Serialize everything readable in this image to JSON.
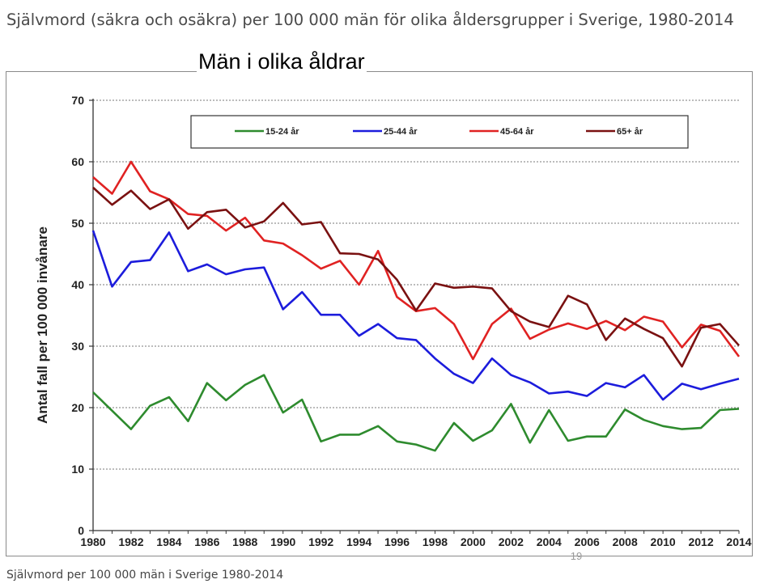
{
  "heading": "Självmord (säkra och osäkra) per 100 000 män för olika åldersgrupper i Sverige, 1980-2014",
  "slide_title": "Män i olika åldrar",
  "page_number": "19",
  "caption": "Självmord per 100 000 män i Sverige 1980-2014",
  "chart_data": {
    "type": "line",
    "ylabel": "Antal fall per 100 000 invånare",
    "xlabel": "",
    "ylim": [
      0,
      70
    ],
    "yticks": [
      0,
      10,
      20,
      30,
      40,
      50,
      60,
      70
    ],
    "xlim": [
      1980,
      2014
    ],
    "xticks": [
      1980,
      1982,
      1984,
      1986,
      1988,
      1990,
      1992,
      1994,
      1996,
      1998,
      2000,
      2002,
      2004,
      2006,
      2008,
      2010,
      2012,
      2014
    ],
    "grid": "horizontal dotted",
    "legend": "top",
    "x": [
      1980,
      1981,
      1982,
      1983,
      1984,
      1985,
      1986,
      1987,
      1988,
      1989,
      1990,
      1991,
      1992,
      1993,
      1994,
      1995,
      1996,
      1997,
      1998,
      1999,
      2000,
      2001,
      2002,
      2003,
      2004,
      2005,
      2006,
      2007,
      2008,
      2009,
      2010,
      2011,
      2012,
      2013,
      2014
    ],
    "series": [
      {
        "name": "15-24 år",
        "color": "#2e8b2e",
        "values": [
          22.5,
          19.5,
          16.5,
          20.3,
          21.7,
          17.8,
          24.0,
          21.2,
          23.7,
          25.3,
          19.2,
          21.3,
          14.5,
          15.6,
          15.6,
          17.0,
          14.5,
          14.0,
          13.0,
          17.5,
          14.6,
          16.3,
          20.6,
          14.3,
          19.6,
          14.6,
          15.3,
          15.3,
          19.7,
          18.0,
          17.0,
          16.5,
          16.7,
          19.6,
          19.8
        ]
      },
      {
        "name": "25-44 år",
        "color": "#1c1cdc",
        "values": [
          48.8,
          39.7,
          43.7,
          44.0,
          48.5,
          42.2,
          43.3,
          41.7,
          42.5,
          42.8,
          36.0,
          38.8,
          35.1,
          35.1,
          31.7,
          33.6,
          31.3,
          31.0,
          28.0,
          25.5,
          24.0,
          28.0,
          25.3,
          24.1,
          22.3,
          22.6,
          21.9,
          24.0,
          23.3,
          25.3,
          21.3,
          23.9,
          23.0,
          23.9,
          24.7
        ]
      },
      {
        "name": "45-64 år",
        "color": "#e02222",
        "values": [
          57.5,
          54.8,
          60.0,
          55.2,
          53.9,
          51.5,
          51.2,
          48.8,
          50.9,
          47.2,
          46.7,
          44.8,
          42.6,
          43.9,
          40.0,
          45.5,
          38.0,
          35.7,
          36.2,
          33.6,
          27.9,
          33.6,
          36.1,
          31.2,
          32.7,
          33.7,
          32.8,
          34.1,
          32.6,
          34.8,
          34.0,
          29.8,
          33.5,
          32.5,
          28.3
        ]
      },
      {
        "name": "65+ år",
        "color": "#7a1111",
        "values": [
          55.8,
          53.0,
          55.3,
          52.3,
          53.9,
          49.1,
          51.8,
          52.2,
          49.3,
          50.3,
          53.3,
          49.8,
          50.2,
          45.1,
          45.0,
          44.1,
          40.8,
          35.8,
          40.2,
          39.5,
          39.7,
          39.4,
          35.7,
          34.0,
          33.1,
          38.2,
          36.8,
          31.0,
          34.5,
          32.8,
          31.3,
          26.7,
          33.0,
          33.6,
          30.1
        ]
      }
    ]
  }
}
